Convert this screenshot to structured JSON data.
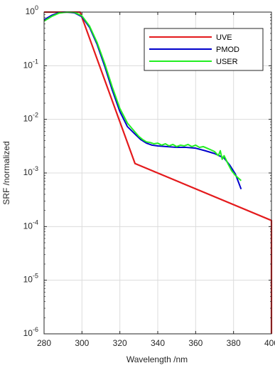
{
  "chart_data": {
    "type": "line",
    "xlabel": "Wavelength /nm",
    "ylabel": "SRF /normalized",
    "xlim": [
      280,
      400
    ],
    "ylim": [
      1e-06,
      1
    ],
    "yscale": "log",
    "grid": true,
    "legend_position": "top-right",
    "x_ticks": [
      280,
      300,
      320,
      340,
      360,
      380,
      400
    ],
    "x_tick_labels": [
      "280",
      "300",
      "320",
      "340",
      "360",
      "380",
      "400"
    ],
    "y_ticks": [
      {
        "value": 1e-06,
        "base": "10",
        "exp": "-6"
      },
      {
        "value": 1e-05,
        "base": "10",
        "exp": "-5"
      },
      {
        "value": 0.0001,
        "base": "10",
        "exp": "-4"
      },
      {
        "value": 0.001,
        "base": "10",
        "exp": "-3"
      },
      {
        "value": 0.01,
        "base": "10",
        "exp": "-2"
      },
      {
        "value": 0.1,
        "base": "10",
        "exp": "-1"
      },
      {
        "value": 1,
        "base": "10",
        "exp": "0"
      }
    ],
    "series": [
      {
        "name": "UVE",
        "color": "#e41a1c",
        "x": [
          280,
          299,
          328,
          400,
          400
        ],
        "y": [
          1.0,
          1.0,
          0.0015,
          0.00013,
          1e-06
        ]
      },
      {
        "name": "PMOD",
        "color": "#0000cc",
        "x": [
          280,
          284,
          288,
          292,
          296,
          300,
          304,
          308,
          312,
          316,
          320,
          324,
          328,
          331,
          334,
          337,
          340,
          345,
          350,
          355,
          360,
          365,
          370,
          375,
          378,
          381,
          384
        ],
        "y": [
          0.72,
          0.87,
          0.98,
          1.0,
          0.97,
          0.82,
          0.52,
          0.25,
          0.098,
          0.035,
          0.014,
          0.0073,
          0.0053,
          0.0042,
          0.0036,
          0.0033,
          0.0032,
          0.0031,
          0.003,
          0.003,
          0.0029,
          0.0026,
          0.0023,
          0.0019,
          0.0014,
          0.00095,
          0.0005
        ]
      },
      {
        "name": "USER",
        "color": "#22ee22",
        "x": [
          280,
          284,
          288,
          292,
          296,
          300,
          304,
          308,
          312,
          316,
          320,
          324,
          328,
          330,
          332,
          334,
          336,
          338,
          340,
          342,
          344,
          346,
          348,
          350,
          352,
          354,
          356,
          358,
          360,
          362,
          364,
          366,
          368,
          370,
          372,
          373,
          374,
          375,
          377,
          379,
          381,
          384
        ],
        "y": [
          0.68,
          0.83,
          0.96,
          1.0,
          0.99,
          0.85,
          0.55,
          0.27,
          0.11,
          0.04,
          0.016,
          0.0085,
          0.0058,
          0.0048,
          0.0042,
          0.0038,
          0.0037,
          0.0035,
          0.0036,
          0.0033,
          0.0035,
          0.0032,
          0.0034,
          0.0031,
          0.0033,
          0.0032,
          0.0034,
          0.0031,
          0.0033,
          0.003,
          0.0031,
          0.0029,
          0.0027,
          0.0025,
          0.0021,
          0.0026,
          0.0018,
          0.0021,
          0.0015,
          0.0011,
          0.0009,
          0.00072
        ]
      }
    ]
  }
}
